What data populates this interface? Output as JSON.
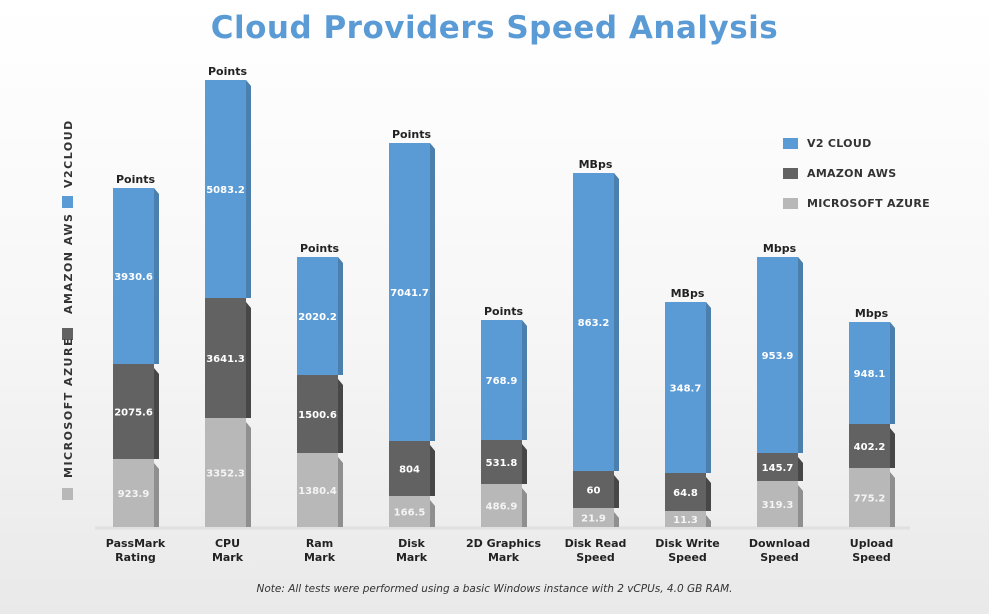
{
  "title": "Cloud Providers Speed Analysis",
  "note": "Note: All tests were performed using a basic Windows instance with 2 vCPUs, 4.0 GB RAM.",
  "colors": {
    "v2cloud": "#5b9bd5",
    "aws": "#626262",
    "azure": "#b8b8b8",
    "title": "#5b9bd5"
  },
  "chart_data": {
    "type": "bar",
    "stacked": true,
    "title": "Cloud Providers Speed Analysis",
    "categories": [
      "PassMark Rating",
      "CPU Mark",
      "Ram Mark",
      "Disk Mark",
      "2D Graphics Mark",
      "Disk Read Speed",
      "Disk Write Speed",
      "Download Speed",
      "Upload Speed"
    ],
    "units": [
      "Points",
      "Points",
      "Points",
      "Points",
      "Points",
      "MBps",
      "MBps",
      "Mbps",
      "Mbps"
    ],
    "series": [
      {
        "name": "MICROSOFT AZURE",
        "values": [
          923.9,
          3352.3,
          1380.4,
          166.5,
          486.9,
          21.9,
          11.3,
          319.3,
          775.2
        ]
      },
      {
        "name": "AMAZON AWS",
        "values": [
          2075.6,
          3641.3,
          1500.6,
          804,
          531.8,
          60,
          64.8,
          145.7,
          402.2
        ]
      },
      {
        "name": "V2 CLOUD",
        "values": [
          3930.6,
          5083.2,
          2020.2,
          7041.7,
          768.9,
          863.2,
          348.7,
          953.9,
          948.1
        ]
      }
    ],
    "legend": [
      "V2 CLOUD",
      "AMAZON AWS",
      "MICROSOFT AZURE"
    ],
    "vertical_legend": [
      "V2CLOUD",
      "AMAZON AWS",
      "MICROSOFT AZURE"
    ],
    "legend_position": "top-right",
    "grid": false
  }
}
